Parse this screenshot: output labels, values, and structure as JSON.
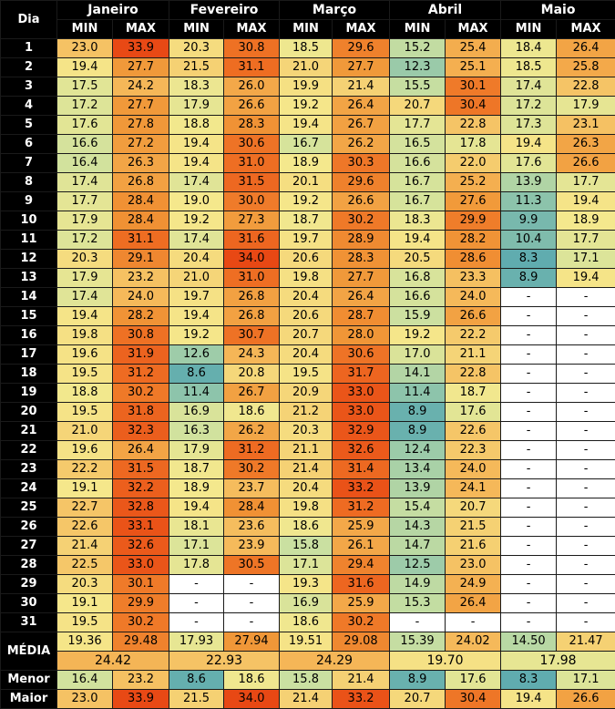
{
  "header": {
    "dia_label": "Dia",
    "months": [
      "Janeiro",
      "Fevereiro",
      "Março",
      "Abril",
      "Maio"
    ],
    "min_label": "MIN",
    "max_label": "MAX"
  },
  "rows": [
    {
      "day": "1",
      "cells": [
        "23.0",
        "33.9",
        "20.3",
        "30.8",
        "18.5",
        "29.6",
        "15.2",
        "25.4",
        "18.4",
        "26.4"
      ]
    },
    {
      "day": "2",
      "cells": [
        "19.4",
        "27.7",
        "21.5",
        "31.1",
        "21.0",
        "27.7",
        "12.3",
        "25.1",
        "18.5",
        "25.8"
      ]
    },
    {
      "day": "3",
      "cells": [
        "17.5",
        "24.2",
        "18.3",
        "26.0",
        "19.9",
        "21.4",
        "15.5",
        "30.1",
        "17.4",
        "22.8"
      ]
    },
    {
      "day": "4",
      "cells": [
        "17.2",
        "27.7",
        "17.9",
        "26.6",
        "19.2",
        "26.4",
        "20.7",
        "30.4",
        "17.2",
        "17.9"
      ]
    },
    {
      "day": "5",
      "cells": [
        "17.6",
        "27.8",
        "18.8",
        "28.3",
        "19.4",
        "26.7",
        "17.7",
        "22.8",
        "17.3",
        "23.1"
      ]
    },
    {
      "day": "6",
      "cells": [
        "16.6",
        "27.2",
        "19.4",
        "30.6",
        "16.7",
        "26.2",
        "16.5",
        "17.8",
        "19.4",
        "26.3"
      ]
    },
    {
      "day": "7",
      "cells": [
        "16.4",
        "26.3",
        "19.4",
        "31.0",
        "18.9",
        "30.3",
        "16.6",
        "22.0",
        "17.6",
        "26.6"
      ]
    },
    {
      "day": "8",
      "cells": [
        "17.4",
        "26.8",
        "17.4",
        "31.5",
        "20.1",
        "29.6",
        "16.7",
        "25.2",
        "13.9",
        "17.7"
      ]
    },
    {
      "day": "9",
      "cells": [
        "17.7",
        "28.4",
        "19.0",
        "30.0",
        "19.2",
        "26.6",
        "16.7",
        "27.6",
        "11.3",
        "19.4"
      ]
    },
    {
      "day": "10",
      "cells": [
        "17.9",
        "28.4",
        "19.2",
        "27.3",
        "18.7",
        "30.2",
        "18.3",
        "29.9",
        "9.9",
        "18.9"
      ]
    },
    {
      "day": "11",
      "cells": [
        "17.2",
        "31.1",
        "17.4",
        "31.6",
        "19.7",
        "28.9",
        "19.4",
        "28.2",
        "10.4",
        "17.7"
      ]
    },
    {
      "day": "12",
      "cells": [
        "20.3",
        "29.1",
        "20.4",
        "34.0",
        "20.6",
        "28.3",
        "20.5",
        "28.6",
        "8.3",
        "17.1"
      ]
    },
    {
      "day": "13",
      "cells": [
        "17.9",
        "23.2",
        "21.0",
        "31.0",
        "19.8",
        "27.7",
        "16.8",
        "23.3",
        "8.9",
        "19.4"
      ]
    },
    {
      "day": "14",
      "cells": [
        "17.4",
        "24.0",
        "19.7",
        "26.8",
        "20.4",
        "26.4",
        "16.6",
        "24.0",
        "-",
        "-"
      ]
    },
    {
      "day": "15",
      "cells": [
        "19.4",
        "28.2",
        "19.4",
        "26.8",
        "20.6",
        "28.7",
        "15.9",
        "26.6",
        "-",
        "-"
      ]
    },
    {
      "day": "16",
      "cells": [
        "19.8",
        "30.8",
        "19.2",
        "30.7",
        "20.7",
        "28.0",
        "19.2",
        "22.2",
        "-",
        "-"
      ]
    },
    {
      "day": "17",
      "cells": [
        "19.6",
        "31.9",
        "12.6",
        "24.3",
        "20.4",
        "30.6",
        "17.0",
        "21.1",
        "-",
        "-"
      ]
    },
    {
      "day": "18",
      "cells": [
        "19.5",
        "31.2",
        "8.6",
        "20.8",
        "19.5",
        "31.7",
        "14.1",
        "22.8",
        "-",
        "-"
      ]
    },
    {
      "day": "19",
      "cells": [
        "18.8",
        "30.2",
        "11.4",
        "26.7",
        "20.9",
        "33.0",
        "11.4",
        "18.7",
        "-",
        "-"
      ]
    },
    {
      "day": "20",
      "cells": [
        "19.5",
        "31.8",
        "16.9",
        "18.6",
        "21.2",
        "33.0",
        "8.9",
        "17.6",
        "-",
        "-"
      ]
    },
    {
      "day": "21",
      "cells": [
        "21.0",
        "32.3",
        "16.3",
        "26.2",
        "20.3",
        "32.9",
        "8.9",
        "22.6",
        "-",
        "-"
      ]
    },
    {
      "day": "22",
      "cells": [
        "19.6",
        "26.4",
        "17.9",
        "31.2",
        "21.1",
        "32.6",
        "12.4",
        "22.3",
        "-",
        "-"
      ]
    },
    {
      "day": "23",
      "cells": [
        "22.2",
        "31.5",
        "18.7",
        "30.2",
        "21.4",
        "31.4",
        "13.4",
        "24.0",
        "-",
        "-"
      ]
    },
    {
      "day": "24",
      "cells": [
        "19.1",
        "32.2",
        "18.9",
        "23.7",
        "20.4",
        "33.2",
        "13.9",
        "24.1",
        "-",
        "-"
      ]
    },
    {
      "day": "25",
      "cells": [
        "22.7",
        "32.8",
        "19.4",
        "28.4",
        "19.8",
        "31.2",
        "15.4",
        "20.7",
        "-",
        "-"
      ]
    },
    {
      "day": "26",
      "cells": [
        "22.6",
        "33.1",
        "18.1",
        "23.6",
        "18.6",
        "25.9",
        "14.3",
        "21.5",
        "-",
        "-"
      ]
    },
    {
      "day": "27",
      "cells": [
        "21.4",
        "32.6",
        "17.1",
        "23.9",
        "15.8",
        "26.1",
        "14.7",
        "21.6",
        "-",
        "-"
      ]
    },
    {
      "day": "28",
      "cells": [
        "22.5",
        "33.0",
        "17.8",
        "30.5",
        "17.1",
        "29.4",
        "12.5",
        "23.0",
        "-",
        "-"
      ]
    },
    {
      "day": "29",
      "cells": [
        "20.3",
        "30.1",
        "-",
        "-",
        "19.3",
        "31.6",
        "14.9",
        "24.9",
        "-",
        "-"
      ]
    },
    {
      "day": "30",
      "cells": [
        "19.1",
        "29.9",
        "-",
        "-",
        "16.9",
        "25.9",
        "15.3",
        "26.4",
        "-",
        "-"
      ]
    },
    {
      "day": "31",
      "cells": [
        "19.5",
        "30.2",
        "-",
        "-",
        "18.6",
        "30.2",
        "-",
        "-",
        "-",
        "-"
      ]
    }
  ],
  "media": {
    "label": "MÉDIA",
    "cells": [
      "19.36",
      "29.48",
      "17.93",
      "27.94",
      "19.51",
      "29.08",
      "15.39",
      "24.02",
      "14.50",
      "21.47"
    ],
    "averages": [
      "24.42",
      "22.93",
      "24.29",
      "19.70",
      "17.98"
    ]
  },
  "menor": {
    "label": "Menor",
    "cells": [
      "16.4",
      "23.2",
      "8.6",
      "18.6",
      "15.8",
      "21.4",
      "8.9",
      "17.6",
      "8.3",
      "17.1"
    ]
  },
  "maior": {
    "label": "Maior",
    "cells": [
      "23.0",
      "33.9",
      "21.5",
      "34.0",
      "21.4",
      "33.2",
      "20.7",
      "30.4",
      "19.4",
      "26.6"
    ]
  }
}
